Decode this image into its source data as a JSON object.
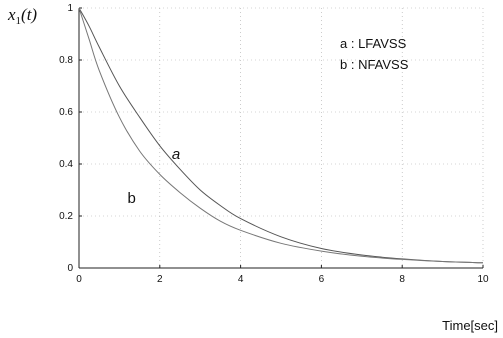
{
  "chart_data": {
    "type": "line",
    "ylabel_main": "x",
    "ylabel_sub": "1",
    "ylabel_arg": "(t)",
    "xlabel": "Time[sec]",
    "xlim": [
      0,
      10
    ],
    "ylim": [
      0,
      1
    ],
    "x_ticks": [
      "0",
      "2",
      "4",
      "6",
      "8",
      "10"
    ],
    "x_tick_values": [
      0,
      2,
      4,
      6,
      8,
      10
    ],
    "y_ticks": [
      "0",
      "0.2",
      "0.4",
      "0.6",
      "0.8",
      "1"
    ],
    "y_tick_values": [
      0,
      0.2,
      0.4,
      0.6,
      0.8,
      1
    ],
    "grid": true,
    "legend": [
      "a : LFAVSS",
      "b : NFAVSS"
    ],
    "legend_position": "top-right",
    "series": [
      {
        "name": "a",
        "x": [
          0,
          0.25,
          0.5,
          1,
          1.5,
          2,
          2.5,
          3,
          3.5,
          4,
          5,
          6,
          7,
          8,
          9,
          10
        ],
        "values": [
          1.0,
          0.93,
          0.85,
          0.7,
          0.58,
          0.47,
          0.38,
          0.3,
          0.24,
          0.19,
          0.12,
          0.075,
          0.05,
          0.035,
          0.025,
          0.02
        ]
      },
      {
        "name": "b",
        "x": [
          0,
          0.25,
          0.5,
          1,
          1.5,
          2,
          2.5,
          3,
          3.5,
          4,
          5,
          6,
          7,
          8,
          9,
          10
        ],
        "values": [
          1.0,
          0.88,
          0.76,
          0.58,
          0.45,
          0.36,
          0.29,
          0.23,
          0.18,
          0.145,
          0.095,
          0.065,
          0.045,
          0.033,
          0.025,
          0.02
        ]
      }
    ],
    "annotations": [
      {
        "text": "a",
        "x": 2.3,
        "y": 0.42
      },
      {
        "text": "b",
        "x": 1.2,
        "y": 0.25
      }
    ],
    "colors": {
      "series_a": "#555555",
      "series_b": "#777777",
      "grid": "#aaaaaa",
      "axis": "#222222"
    }
  }
}
